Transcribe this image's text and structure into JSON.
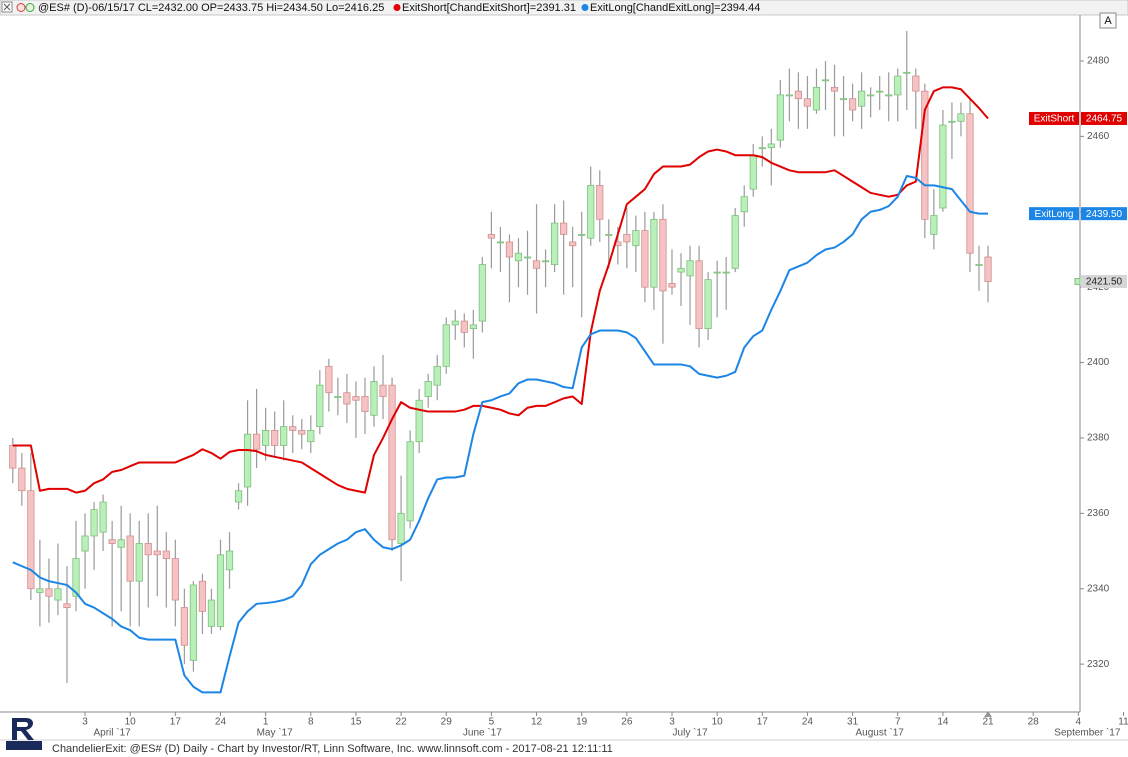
{
  "chart_data": {
    "type": "candlestick",
    "title": "@ES# (D)-06/15/17 CL=2432.00 OP=2433.75 Hi=2434.50 Lo=2416.25",
    "footer": "ChandelierExit: @ES# (D) Daily - Chart by Investor/RT, Linn Software, Inc. www.linnsoft.com - 2017-08-21 12:11:11",
    "button": "A",
    "categories": [
      null,
      null,
      null,
      null,
      null,
      null,
      null,
      null,
      "3",
      null,
      null,
      null,
      null,
      "10",
      null,
      null,
      null,
      null,
      "17",
      null,
      null,
      null,
      null,
      "24",
      null,
      null,
      null,
      null,
      "1",
      null,
      null,
      null,
      null,
      "8",
      null,
      null,
      null,
      null,
      "15",
      null,
      null,
      null,
      null,
      "22",
      null,
      null,
      null,
      null,
      "29",
      null,
      null,
      null,
      null,
      "5",
      null,
      null,
      null,
      null,
      "12",
      null,
      null,
      null,
      null,
      "19",
      null,
      null,
      null,
      null,
      "26",
      null,
      null,
      null,
      null,
      "3",
      null,
      null,
      null,
      null,
      "10",
      null,
      null,
      null,
      null,
      "17",
      null,
      null,
      null,
      null,
      "24",
      null,
      null,
      null,
      null,
      "31",
      null,
      null,
      null,
      null,
      "7",
      null,
      null,
      null,
      null,
      "14",
      null,
      null,
      null,
      null,
      "21",
      null,
      null,
      null,
      null,
      "28",
      null,
      null,
      null,
      null,
      "4",
      null,
      null,
      null,
      null,
      "11"
    ],
    "month_labels": [
      null,
      null,
      null,
      null,
      null,
      null,
      null,
      null,
      null,
      null,
      null,
      "April `17",
      null,
      null,
      null,
      null,
      null,
      null,
      null,
      null,
      null,
      null,
      null,
      null,
      null,
      null,
      null,
      null,
      null,
      "May `17",
      null,
      null,
      null,
      null,
      null,
      null,
      null,
      null,
      null,
      null,
      null,
      null,
      null,
      null,
      null,
      null,
      null,
      null,
      null,
      null,
      null,
      null,
      "June `17",
      null,
      null,
      null,
      null,
      null,
      null,
      null,
      null,
      null,
      null,
      null,
      null,
      null,
      null,
      null,
      null,
      null,
      null,
      null,
      null,
      null,
      null,
      "July `17",
      null,
      null,
      null,
      null,
      null,
      null,
      null,
      null,
      null,
      null,
      null,
      null,
      null,
      null,
      null,
      null,
      null,
      null,
      null,
      null,
      "August `17",
      null,
      null,
      null,
      null,
      null,
      null,
      null,
      null,
      null,
      null,
      null,
      null,
      null,
      null,
      null,
      null,
      null,
      null,
      null,
      null,
      null,
      null,
      "September `17",
      null,
      null,
      null,
      null
    ],
    "open": [
      2378,
      2372,
      2366,
      2339,
      2340,
      2337,
      2336,
      2338,
      2350,
      2354,
      2355,
      2353,
      2351,
      2354,
      2342,
      2352,
      2350,
      2350,
      2348,
      2335,
      2321,
      2342,
      2330,
      2330,
      2345,
      2363,
      2367,
      2381,
      2378,
      2382,
      2378,
      2383,
      2382,
      2379,
      2383,
      2399,
      2391,
      2392,
      2391,
      2391,
      2386,
      2394,
      2394,
      2352,
      2358,
      2379,
      2391,
      2394,
      2399,
      2410,
      2411,
      2409,
      2411,
      2434,
      2432,
      2432,
      2427,
      2428,
      2427,
      2427,
      2426,
      2437,
      2432,
      2434,
      2433,
      2447,
      2434,
      2432,
      2434,
      2431,
      2435,
      2420,
      2438,
      2421,
      2424,
      2423,
      2427,
      2409,
      2424,
      2424,
      2425,
      2440,
      2446,
      2457,
      2457,
      2459,
      2471,
      2472,
      2470,
      2467,
      2475,
      2473,
      2470,
      2470,
      2468,
      2471,
      2472,
      2471,
      2471,
      2477,
      2476,
      2472,
      2434,
      2441,
      2464,
      2464,
      2466,
      2426,
      2428,
      null,
      null,
      null,
      null,
      null,
      null,
      null,
      null,
      null,
      null,
      null,
      null,
      null,
      null,
      null
    ],
    "high": [
      2380,
      2376,
      2376,
      2353,
      2348,
      2352,
      2346,
      2358,
      2360,
      2363,
      2365,
      2358,
      2362,
      2360,
      2358,
      2360,
      2362,
      2355,
      2353,
      2340,
      2342,
      2344,
      2340,
      2353,
      2355,
      2368,
      2390,
      2393,
      2388,
      2387,
      2390,
      2386,
      2385,
      2386,
      2398,
      2401,
      2396,
      2397,
      2395,
      2396,
      2399,
      2402,
      2396,
      2370,
      2382,
      2393,
      2397,
      2402,
      2412,
      2414,
      2413,
      2414,
      2428,
      2440,
      2436,
      2434,
      2433,
      2435,
      2442,
      2430,
      2442,
      2443,
      2436,
      2440,
      2452,
      2451,
      2438,
      2436,
      2441,
      2439,
      2440,
      2440,
      2442,
      2430,
      2429,
      2431,
      2431,
      2424,
      2427,
      2428,
      2441,
      2447,
      2458,
      2460,
      2462,
      2475,
      2478,
      2477,
      2476,
      2478,
      2480,
      2479,
      2476,
      2474,
      2477,
      2473,
      2476,
      2477,
      2478,
      2488,
      2478,
      2474,
      2446,
      2467,
      2469,
      2469,
      2470,
      2431,
      2431,
      null,
      null,
      null,
      null,
      null,
      null,
      null,
      null,
      null,
      null,
      null,
      null,
      null,
      null,
      null
    ],
    "low": [
      2368,
      2362,
      2337,
      2330,
      2331,
      2333,
      2315,
      2334,
      2340,
      2345,
      2350,
      2330,
      2334,
      2330,
      2330,
      2335,
      2338,
      2335,
      2330,
      2320,
      2318,
      2328,
      2328,
      2329,
      2340,
      2361,
      2362,
      2372,
      2374,
      2375,
      2374,
      2376,
      2377,
      2376,
      2381,
      2387,
      2386,
      2384,
      2380,
      2381,
      2383,
      2385,
      2350,
      2342,
      2356,
      2376,
      2388,
      2390,
      2397,
      2406,
      2404,
      2401,
      2408,
      2425,
      2424,
      2416,
      2420,
      2418,
      2413,
      2420,
      2424,
      2418,
      2420,
      2412,
      2431,
      2432,
      2425,
      2426,
      2425,
      2424,
      2416,
      2414,
      2405,
      2418,
      2415,
      2410,
      2404,
      2406,
      2412,
      2414,
      2424,
      2436,
      2444,
      2452,
      2447,
      2457,
      2464,
      2462,
      2462,
      2466,
      2467,
      2460,
      2460,
      2464,
      2462,
      2465,
      2467,
      2464,
      2464,
      2467,
      2462,
      2433,
      2430,
      2440,
      2454,
      2460,
      2424,
      2419,
      2416,
      null,
      null,
      null,
      null,
      null,
      null,
      null,
      null,
      null,
      null,
      null,
      null,
      null,
      null,
      null
    ],
    "close": [
      2372,
      2366,
      2340,
      2340,
      2338,
      2340,
      2335,
      2348,
      2354,
      2361,
      2363,
      2352,
      2353,
      2342,
      2352,
      2349,
      2349,
      2348,
      2337,
      2325,
      2341,
      2334,
      2337,
      2349,
      2350,
      2366,
      2381,
      2377,
      2382,
      2378,
      2383,
      2382,
      2381,
      2382,
      2394,
      2392,
      2391,
      2389,
      2390,
      2387,
      2395,
      2391,
      2353,
      2360,
      2379,
      2390,
      2395,
      2399,
      2410,
      2411,
      2408,
      2410,
      2426,
      2433,
      2432,
      2428,
      2429,
      2428,
      2425,
      2427,
      2437,
      2434,
      2431,
      2434,
      2447,
      2438,
      2434,
      2431,
      2432,
      2435,
      2420,
      2438,
      2419,
      2420,
      2425,
      2427,
      2409,
      2422,
      2424,
      2424,
      2439,
      2444,
      2455,
      2457,
      2458,
      2471,
      2471,
      2470,
      2468,
      2473,
      2475,
      2472,
      2470,
      2467,
      2472,
      2471,
      2472,
      2471,
      2476,
      2477,
      2472,
      2438,
      2439,
      2463,
      2464,
      2466,
      2429,
      2426,
      2421.5,
      null,
      null,
      null,
      null,
      null,
      null,
      null,
      null,
      null,
      null,
      null,
      null,
      null,
      null,
      null
    ],
    "up_color": "#b9efb9",
    "up_edge": "#7fbf7f",
    "down_color": "#f5c3c3",
    "down_edge": "#d08f8f",
    "wick_color": "#9a9a9a",
    "series": [
      {
        "name": "ExitShort",
        "label": "ExitShort[ChandExitShort]=2391.31",
        "color": "#e00000",
        "values": [
          2378,
          2378,
          2378,
          2366,
          2366.5,
          2366.5,
          2366.5,
          2365.5,
          2366,
          2368,
          2369,
          2371,
          2371.5,
          2372.5,
          2373.5,
          2373.5,
          2373.5,
          2373.5,
          2373.5,
          2374.5,
          2375.5,
          2377,
          2376,
          2374.5,
          2376.3,
          2376.8,
          2376.8,
          2376.5,
          2375.5,
          2375,
          2374.5,
          2374,
          2373.5,
          2372,
          2370.5,
          2369,
          2367.5,
          2366.5,
          2366,
          2365.5,
          2375.5,
          2380,
          2385,
          2389.5,
          2388,
          2387.5,
          2387,
          2387,
          2387,
          2387,
          2387.5,
          2388.5,
          2388.5,
          2388,
          2387.5,
          2386.5,
          2386,
          2388,
          2388.5,
          2388.5,
          2389.5,
          2390.5,
          2391,
          2389,
          2408,
          2419,
          2426,
          2434,
          2442,
          2444,
          2446,
          2450,
          2452,
          2452,
          2452,
          2452.5,
          2454.5,
          2456,
          2456.5,
          2456,
          2455,
          2455,
          2455,
          2454.5,
          2453,
          2452,
          2451,
          2450.5,
          2450.5,
          2450.5,
          2450.5,
          2451,
          2449.5,
          2448,
          2446.5,
          2445,
          2444.5,
          2444,
          2444.5,
          2447,
          2448,
          2467,
          2472,
          2473,
          2473,
          2472.5,
          2470,
          2467.5,
          2464.75,
          null,
          null,
          null,
          null,
          null,
          null,
          null,
          null,
          null,
          null,
          null,
          null,
          null,
          null,
          null
        ]
      },
      {
        "name": "ExitLong",
        "label": "ExitLong[ChandExitLong]=2394.44",
        "color": "#1c86e6",
        "values": [
          2347,
          2346,
          2345,
          2343,
          2342,
          2341.5,
          2341,
          2339,
          2336,
          2335,
          2333.5,
          2332,
          2330,
          2329,
          2327,
          2326.5,
          2326.5,
          2326.5,
          2326.5,
          2317,
          2314,
          2312.5,
          2312.5,
          2312.5,
          2322,
          2331,
          2334,
          2336,
          2336.2,
          2336.5,
          2337,
          2338,
          2341,
          2346.5,
          2349,
          2350.5,
          2352,
          2353,
          2355,
          2355.8,
          2353,
          2351,
          2350.5,
          2351.5,
          2353,
          2358,
          2364,
          2369,
          2369.5,
          2369.5,
          2370,
          2381,
          2389.5,
          2390,
          2391,
          2391.8,
          2394.5,
          2395.5,
          2395.5,
          2395,
          2394.5,
          2393.5,
          2393.2,
          2404,
          2407.5,
          2408.5,
          2408.5,
          2408.5,
          2408,
          2406.5,
          2403,
          2399.5,
          2399.5,
          2399.5,
          2399.5,
          2399,
          2397,
          2396.5,
          2396,
          2396.5,
          2397.5,
          2404,
          2407,
          2408.5,
          2414,
          2419,
          2424.5,
          2425.5,
          2426.5,
          2428.5,
          2430,
          2430.5,
          2432,
          2434,
          2438,
          2440,
          2440.5,
          2441.5,
          2444,
          2449.5,
          2449,
          2447,
          2447,
          2446.5,
          2446,
          2443,
          2440,
          2439.5,
          2439.5,
          null,
          null,
          null,
          null,
          null,
          null,
          null,
          null,
          null,
          null,
          null,
          null,
          null,
          null,
          null
        ]
      }
    ],
    "tags": [
      {
        "name": "ExitShort",
        "value": 2464.75,
        "label": "2464.75",
        "color": "#e00000",
        "text_color": "#ffffff"
      },
      {
        "name": "ExitLong",
        "value": 2439.5,
        "label": "2439.50",
        "color": "#1c86e6",
        "text_color": "#ffffff"
      },
      {
        "value": 2421.5,
        "label": "2421.50",
        "color": "#d6d6d6",
        "text_color": "#222222"
      }
    ],
    "ylim": [
      2307.3,
      2492.2
    ],
    "yticks": [
      2320,
      2340,
      2360,
      2380,
      2400,
      2420,
      2440,
      2460,
      2480
    ]
  }
}
